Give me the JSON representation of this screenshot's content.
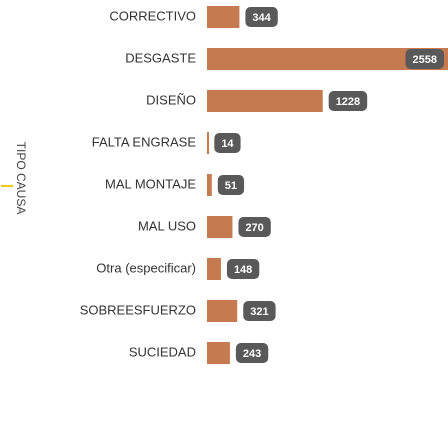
{
  "chart_data": {
    "type": "bar",
    "orientation": "horizontal",
    "y_label": "TIPO CAUSA",
    "categories": [
      "CORRECTIVO",
      "DESGASTE",
      "DISEÑO",
      "FALTA ENGRASE",
      "MAL MONTAJE",
      "MAL USO",
      "Otra (especificar)",
      "SOBREESFUERZO",
      "SUCIEDAD"
    ],
    "values": [
      344,
      2558,
      1228,
      14,
      51,
      270,
      148,
      321,
      243
    ],
    "color": "#c57a4f"
  }
}
